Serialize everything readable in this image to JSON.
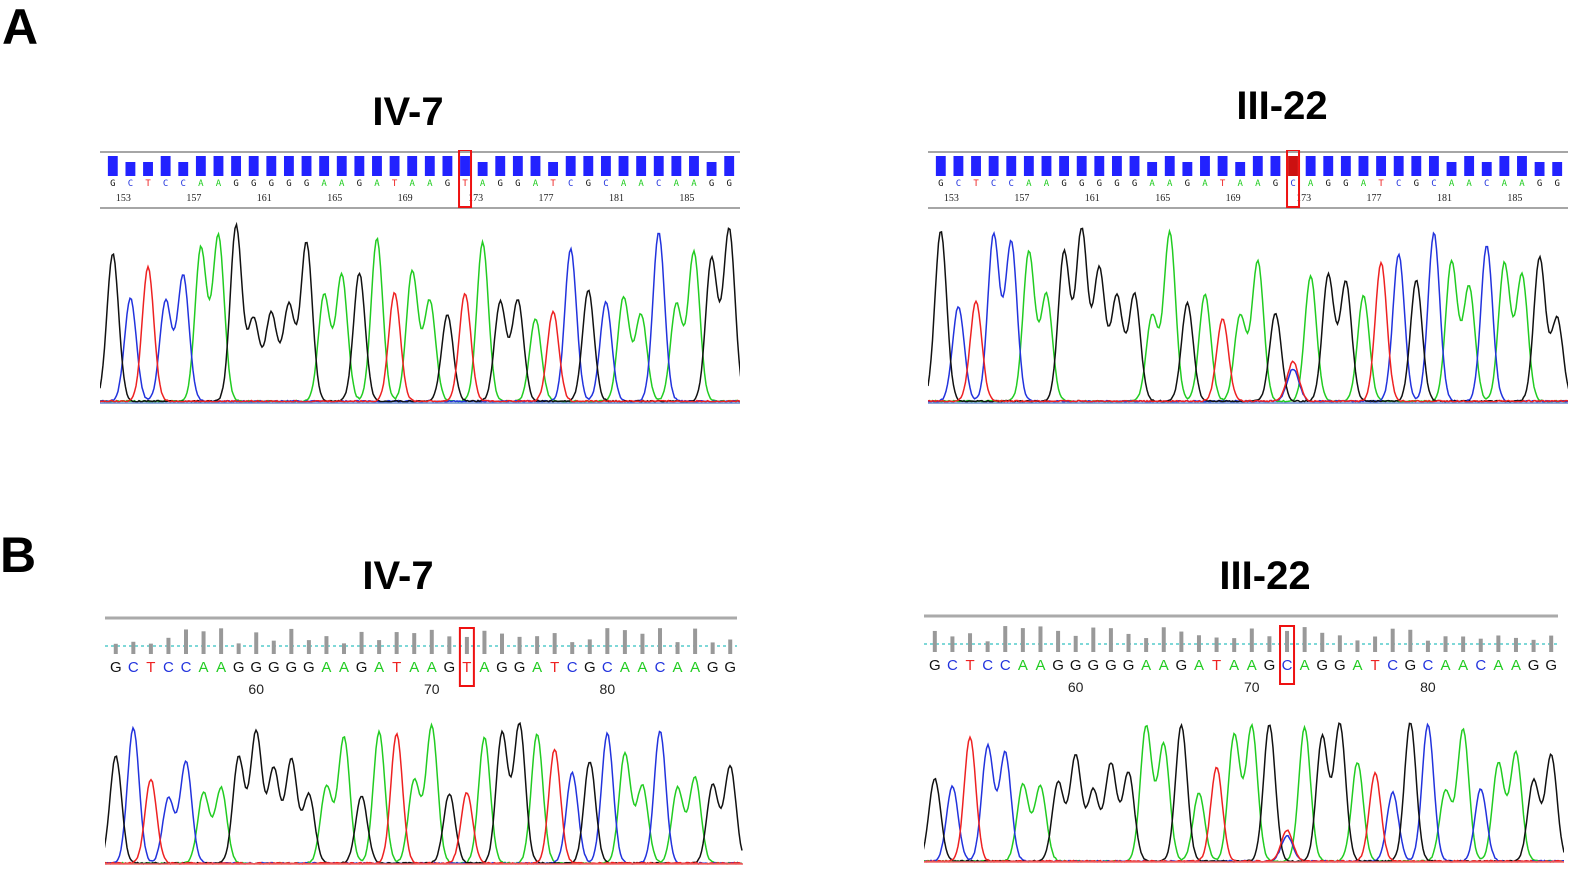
{
  "colors": {
    "A": "#22cc22",
    "C": "#2233dd",
    "G": "#111111",
    "T": "#ee2222",
    "highlight": "#ee1111",
    "qv": "#2222ff",
    "bar": "#999999",
    "cyan": "#55cccc"
  },
  "panels": [
    {
      "letter": "A",
      "traces": [
        {
          "title": "IV-7",
          "style": "A",
          "sequence": "GCTCCAAGGGGGAAGATAAGTAGGATCGCAACAAGG",
          "position_labels": [
            "153",
            "157",
            "161",
            "165",
            "169",
            "173",
            "177",
            "181",
            "185"
          ],
          "highlight_base_index": 20
        },
        {
          "title": "III-22",
          "style": "A",
          "sequence": "GCTCCAAGGGGGAAGATAAGCAGGATCGCAACAAGG",
          "position_labels": [
            "153",
            "157",
            "161",
            "165",
            "169",
            "173",
            "177",
            "181",
            "185"
          ],
          "highlight_base_index": 20
        }
      ]
    },
    {
      "letter": "B",
      "traces": [
        {
          "title": "IV-7",
          "style": "B",
          "sequence": "GCTCCAAGGGGGAAGATAAGTAGGATCGCAACAAGG",
          "position_labels": [
            "60",
            "70",
            "80"
          ],
          "highlight_base_index": 20
        },
        {
          "title": "III-22",
          "style": "B",
          "sequence": "GCTCCAAGGGGGAAGATAAGCAGGATCGCAACAAGG",
          "position_labels": [
            "60",
            "70",
            "80"
          ],
          "highlight_base_index": 20
        }
      ]
    }
  ]
}
